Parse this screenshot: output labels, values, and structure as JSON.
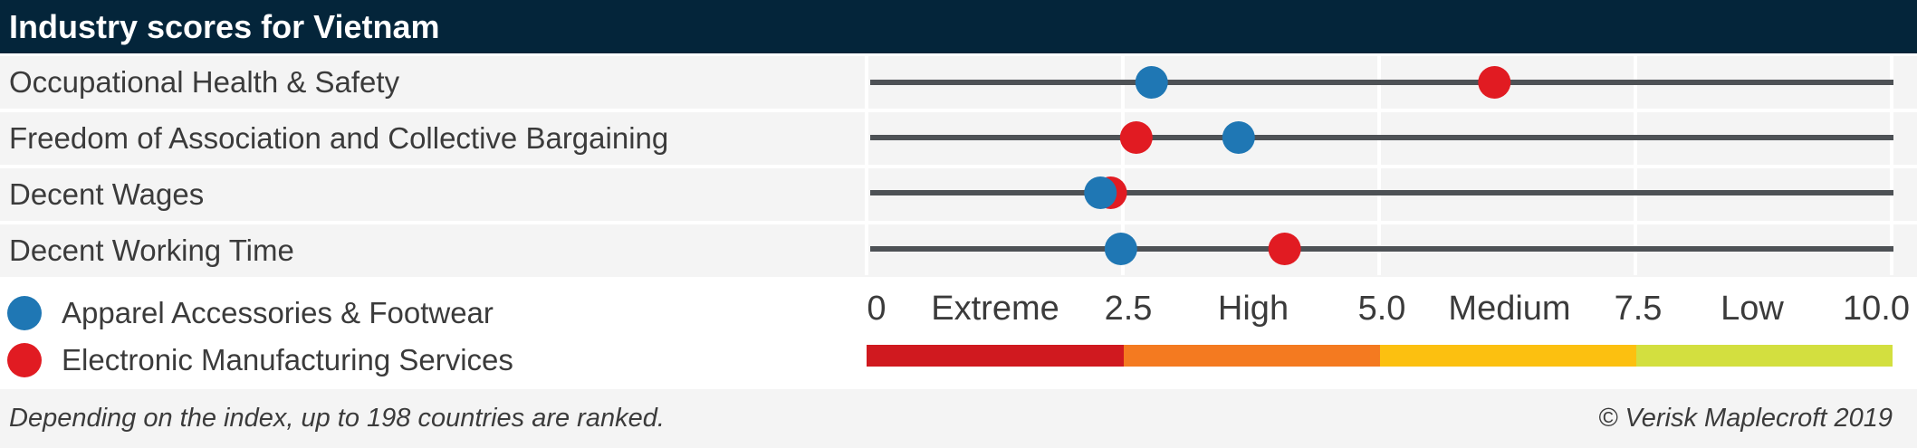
{
  "header": {
    "title": "Industry scores for Vietnam"
  },
  "colors": {
    "apparel": "#1f77b4",
    "electronics": "#e11b22",
    "line": "#4d5155",
    "extreme": "#d0191f",
    "high": "#f47a20",
    "medium": "#fcc010",
    "low": "#d3df3f"
  },
  "chart_data": {
    "type": "scatter",
    "categories": [
      "Occupational Health & Safety",
      "Freedom of Association and Collective Bargaining",
      "Decent Wages",
      "Decent Working Time"
    ],
    "series": [
      {
        "name": "Apparel Accessories & Footwear",
        "values": [
          2.75,
          3.6,
          2.25,
          2.45
        ]
      },
      {
        "name": "Electronic Manufacturing Services",
        "values": [
          6.1,
          2.6,
          2.35,
          4.05
        ]
      }
    ],
    "xlim": [
      0,
      10
    ],
    "ticks": [
      "0",
      "2.5",
      "5.0",
      "7.5",
      "10.0"
    ],
    "bands": [
      {
        "label": "Extreme",
        "from": 0,
        "to": 2.5
      },
      {
        "label": "High",
        "from": 2.5,
        "to": 5
      },
      {
        "label": "Medium",
        "from": 5,
        "to": 7.5
      },
      {
        "label": "Low",
        "from": 7.5,
        "to": 10
      }
    ],
    "grid": true,
    "legend": "bottom-left"
  },
  "footer": {
    "note": "Depending on the index, up to 198 countries are ranked.",
    "copyright": "© Verisk Maplecroft 2019"
  }
}
